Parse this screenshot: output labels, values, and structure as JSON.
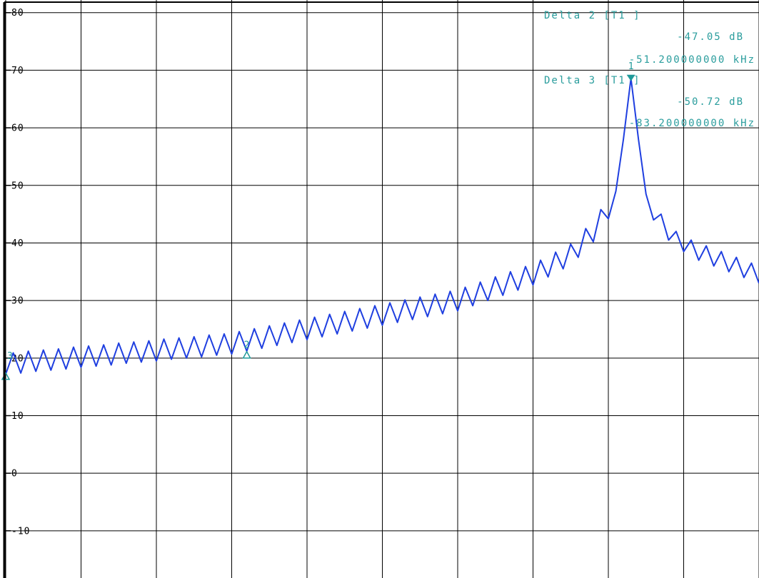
{
  "chart_data": {
    "type": "line",
    "color": "#1f3fe0",
    "marker_color": "#1f9a9a",
    "grid": true,
    "xlim": [
      0,
      10
    ],
    "xticks": [
      0,
      1,
      2,
      3,
      4,
      5,
      6,
      7,
      8,
      9,
      10
    ],
    "ylim": [
      -18.2,
      82.2
    ],
    "yticks": [
      80,
      70,
      60,
      50,
      40,
      30,
      20,
      10,
      0,
      -10
    ],
    "x": [
      0,
      0.1,
      0.2,
      0.3,
      0.4,
      0.5,
      0.6,
      0.7,
      0.8,
      0.9,
      1,
      1.1,
      1.2,
      1.3,
      1.4,
      1.5,
      1.6,
      1.7,
      1.8,
      1.9,
      2,
      2.1,
      2.2,
      2.3,
      2.4,
      2.5,
      2.6,
      2.7,
      2.8,
      2.9,
      3,
      3.1,
      3.2,
      3.3,
      3.4,
      3.5,
      3.6,
      3.7,
      3.8,
      3.9,
      4,
      4.1,
      4.2,
      4.3,
      4.4,
      4.5,
      4.6,
      4.7,
      4.8,
      4.9,
      5,
      5.1,
      5.2,
      5.3,
      5.4,
      5.5,
      5.6,
      5.7,
      5.8,
      5.9,
      6,
      6.1,
      6.2,
      6.3,
      6.4,
      6.5,
      6.6,
      6.7,
      6.8,
      6.9,
      7,
      7.1,
      7.2,
      7.3,
      7.4,
      7.5,
      7.6,
      7.7,
      7.8,
      7.9,
      8,
      8.1,
      8.2,
      8.3,
      8.4,
      8.5,
      8.6,
      8.7,
      8.8,
      8.9,
      9,
      9.1,
      9.2,
      9.3,
      9.4,
      9.5,
      9.6,
      9.7,
      9.8,
      9.9,
      10
    ],
    "values": [
      17.2,
      20.9,
      17.4,
      21.2,
      17.7,
      21.4,
      17.9,
      21.6,
      18.1,
      21.9,
      18.4,
      22.1,
      18.6,
      22.3,
      18.8,
      22.6,
      19.1,
      22.8,
      19.3,
      23.0,
      19.5,
      23.3,
      19.8,
      23.5,
      20.0,
      23.7,
      20.2,
      24.0,
      20.5,
      24.2,
      20.7,
      24.6,
      21.2,
      25.1,
      21.7,
      25.6,
      22.2,
      26.1,
      22.7,
      26.6,
      23.2,
      27.1,
      23.7,
      27.6,
      24.2,
      28.1,
      24.7,
      28.6,
      25.2,
      29.1,
      25.7,
      29.6,
      26.2,
      30.1,
      26.7,
      30.6,
      27.2,
      31.1,
      27.7,
      31.6,
      28.2,
      32.3,
      29.1,
      33.2,
      30.0,
      34.1,
      30.9,
      35.0,
      31.8,
      35.9,
      32.7,
      37.0,
      34.1,
      38.4,
      35.5,
      39.8,
      37.5,
      42.5,
      40.2,
      45.8,
      44.2,
      49.0,
      58.0,
      68.6,
      58.0,
      48.5,
      44.0,
      45.0,
      40.5,
      42.0,
      38.5,
      40.5,
      37.0,
      39.5,
      36.0,
      38.5,
      35.0,
      37.5,
      34.0,
      36.5,
      33.0
    ],
    "markers": [
      {
        "label": "1",
        "x": 8.3,
        "y": 68.6
      },
      {
        "label": "2",
        "x": 3.2,
        "y": 20.5
      },
      {
        "label": "3",
        "x": 0,
        "y": 16.8
      }
    ],
    "annotations": [
      "Delta 2 [T1 ]",
      "-47.05 dB",
      "-51.200000000 kHz",
      "Delta 3 [T1 ]",
      "-50.72 dB",
      "-83.200000000 kHz"
    ]
  }
}
